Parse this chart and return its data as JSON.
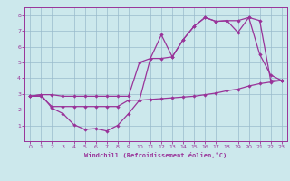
{
  "xlabel": "Windchill (Refroidissement éolien,°C)",
  "bg_color": "#cce8ec",
  "line_color": "#993399",
  "grid_color": "#99bbcc",
  "xlim": [
    -0.5,
    23.5
  ],
  "ylim": [
    0,
    8.5
  ],
  "yticks": [
    1,
    2,
    3,
    4,
    5,
    6,
    7,
    8
  ],
  "xticks": [
    0,
    1,
    2,
    3,
    4,
    5,
    6,
    7,
    8,
    9,
    10,
    11,
    12,
    13,
    14,
    15,
    16,
    17,
    18,
    19,
    20,
    21,
    22,
    23
  ],
  "line1_x": [
    0,
    1,
    2,
    3,
    4,
    5,
    6,
    7,
    8,
    9,
    10,
    11,
    12,
    13,
    14,
    15,
    16,
    17,
    18,
    19,
    20,
    21,
    22,
    23
  ],
  "line1_y": [
    2.85,
    2.95,
    2.1,
    1.75,
    1.05,
    0.75,
    0.8,
    0.65,
    1.0,
    1.75,
    2.6,
    5.25,
    6.75,
    5.35,
    6.45,
    7.3,
    7.85,
    7.6,
    7.65,
    6.9,
    7.85,
    5.5,
    4.2,
    3.85
  ],
  "line2_x": [
    0,
    1,
    2,
    3,
    4,
    5,
    6,
    7,
    8,
    9,
    10,
    11,
    12,
    13,
    14,
    15,
    16,
    17,
    18,
    19,
    20,
    21,
    22,
    23
  ],
  "line2_y": [
    2.85,
    2.95,
    2.95,
    2.85,
    2.85,
    2.85,
    2.85,
    2.85,
    2.85,
    2.85,
    5.0,
    5.25,
    5.25,
    5.35,
    6.45,
    7.3,
    7.85,
    7.6,
    7.65,
    7.65,
    7.85,
    7.65,
    3.85,
    3.85
  ],
  "line3_x": [
    0,
    1,
    2,
    3,
    4,
    5,
    6,
    7,
    8,
    9,
    10,
    11,
    12,
    13,
    14,
    15,
    16,
    17,
    18,
    19,
    20,
    21,
    22,
    23
  ],
  "line3_y": [
    2.85,
    2.85,
    2.2,
    2.2,
    2.2,
    2.2,
    2.2,
    2.2,
    2.2,
    2.6,
    2.6,
    2.65,
    2.7,
    2.75,
    2.8,
    2.85,
    2.95,
    3.05,
    3.2,
    3.3,
    3.5,
    3.65,
    3.75,
    3.85
  ]
}
